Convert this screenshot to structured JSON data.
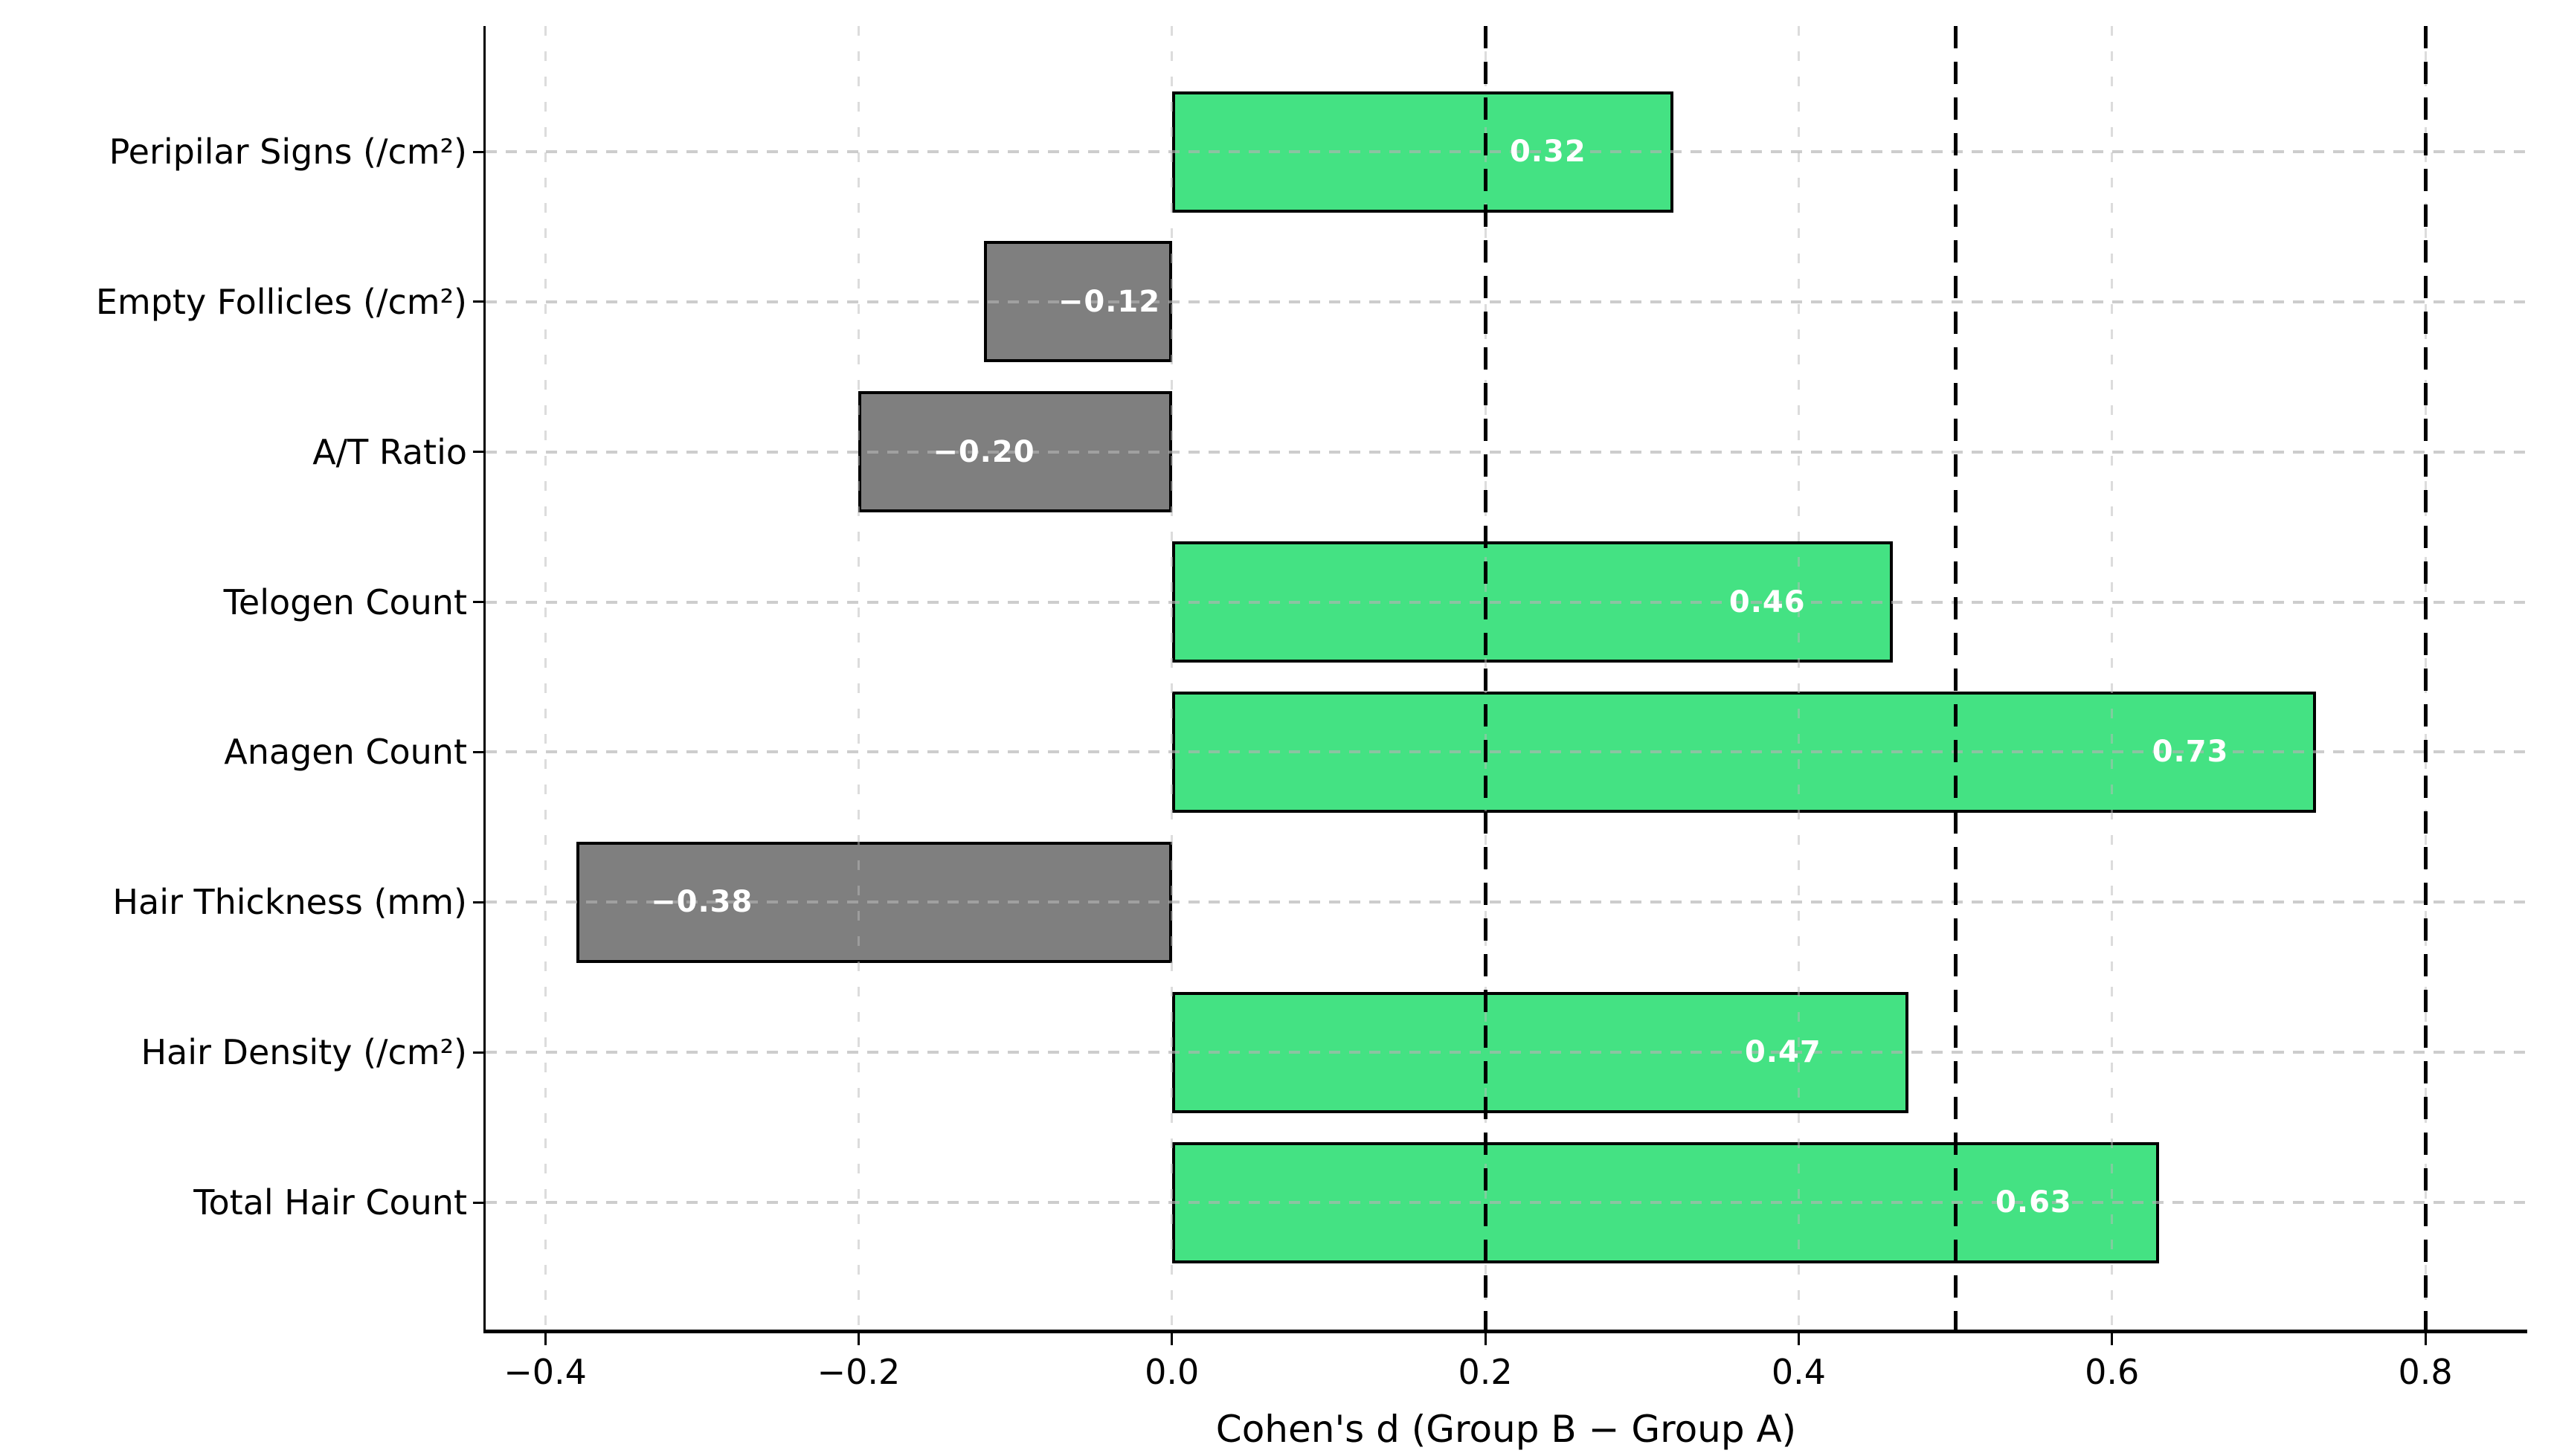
{
  "chart_data": {
    "type": "bar",
    "orientation": "horizontal",
    "title": "",
    "xlabel": "Cohen's d (Group B − Group A)",
    "ylabel": "",
    "categories": [
      "Peripilar Signs (/cm²)",
      "Empty Follicles (/cm²)",
      "A/T Ratio",
      "Telogen Count",
      "Anagen Count",
      "Hair Thickness (mm)",
      "Hair Density (/cm²)",
      "Total Hair Count"
    ],
    "values": [
      0.32,
      -0.12,
      -0.2,
      0.46,
      0.73,
      -0.38,
      0.47,
      0.63
    ],
    "value_labels": [
      "0.32",
      "−0.12",
      "−0.20",
      "0.46",
      "0.73",
      "−0.38",
      "0.47",
      "0.63"
    ],
    "x_ticks": [
      -0.4,
      -0.2,
      0.0,
      0.2,
      0.4,
      0.6,
      0.8
    ],
    "x_tick_labels": [
      "−0.4",
      "−0.2",
      "0.0",
      "0.2",
      "0.4",
      "0.6",
      "0.8"
    ],
    "xlim": [
      -0.438,
      0.865
    ],
    "threshold_lines": [
      0.2,
      0.5,
      0.8
    ],
    "grid": true,
    "legend_position": "none",
    "colors": {
      "positive_bar": "#44E283",
      "negative_bar": "#7F7F7F",
      "bar_edge": "#000000",
      "grid_line": "#B2B2B2",
      "threshold_line": "#000000",
      "value_text": "#FFFFFF",
      "axis_text": "#000000",
      "background": "#FFFFFF"
    }
  }
}
